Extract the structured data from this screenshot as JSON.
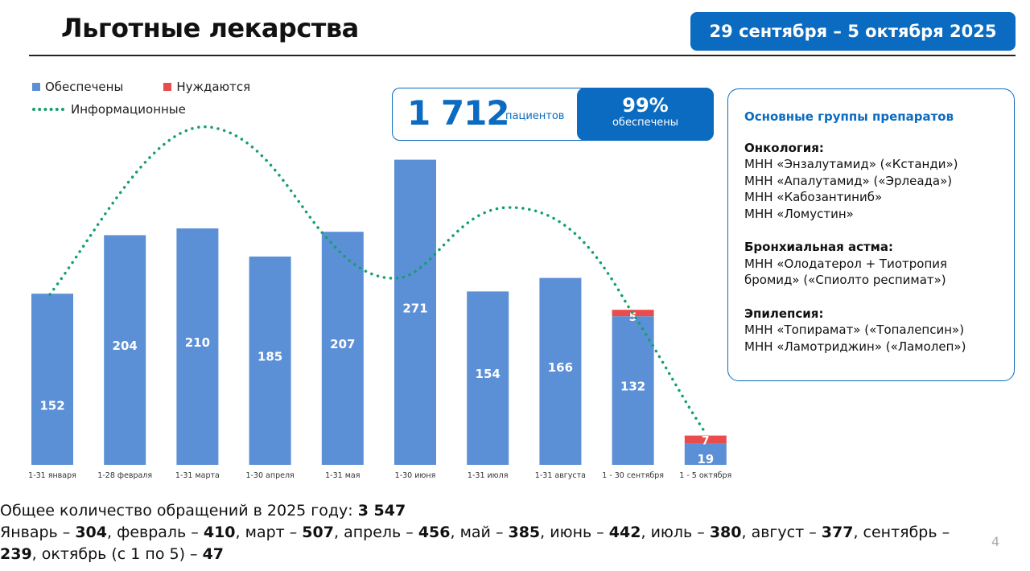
{
  "header": {
    "title": "Льготные лекарства",
    "date_range": "29 сентября – 5 октября 2025"
  },
  "kpi": {
    "patients": "1 712",
    "patients_label": "пациентов",
    "percent": "99%",
    "percent_label": "обеспечены"
  },
  "groups": {
    "title": "Основные группы препаратов",
    "items": [
      {
        "name": "Онкология:",
        "drugs": [
          "МНН «Энзалутамид» («Кстанди»)",
          "МНН «Апалутамид» («Эрлеада»)",
          "МНН «Кабозантиниб»",
          "МНН «Ломустин»"
        ]
      },
      {
        "name": "Бронхиальная астма:",
        "drugs": [
          "МНН «Олодатерол + Тиотропия",
          "бромид» («Спиолто респимат»)"
        ]
      },
      {
        "name": "Эпилепсия:",
        "drugs": [
          "МНН «Топирамат» («Топалепсин»)",
          "МНН «Ламотриджин» («Ламолеп»)"
        ]
      }
    ]
  },
  "chart_data": {
    "type": "bar",
    "stacked": true,
    "categories": [
      "1-31 января",
      "1-28 февраля",
      "1-31 марта",
      "1-30 апреля",
      "1-31 мая",
      "1-30 июня",
      "1-31 июля",
      "1-31 августа",
      "1 - 30 сентября",
      "1 - 5 октября"
    ],
    "series": [
      {
        "name": "Обеспечены",
        "color": "#5b8fd6",
        "values": [
          152,
          204,
          210,
          185,
          207,
          271,
          154,
          166,
          132,
          19
        ]
      },
      {
        "name": "Нуждаются",
        "color": "#e84c4c",
        "values": [
          0,
          0,
          0,
          0,
          0,
          0,
          0,
          0,
          5,
          7
        ]
      },
      {
        "name": "Информационные",
        "color": "#13a06a",
        "style": "dotted-line"
      }
    ],
    "legend": "top-left",
    "grid": false
  },
  "footer": {
    "total_label": "Общее количество обращений в 2025 году: ",
    "total": "3 547",
    "months": [
      [
        "Январь – ",
        "304"
      ],
      [
        "февраль – ",
        "410"
      ],
      [
        "март – ",
        "507"
      ],
      [
        "апрель – ",
        "456"
      ],
      [
        "май – ",
        "385"
      ],
      [
        "июнь – ",
        "442"
      ],
      [
        "июль – ",
        "380"
      ],
      [
        "август – ",
        "377"
      ],
      [
        "сентябрь – ",
        "239"
      ],
      [
        "октябрь (с 1 по 5) – ",
        "47"
      ]
    ],
    "page": "4"
  }
}
